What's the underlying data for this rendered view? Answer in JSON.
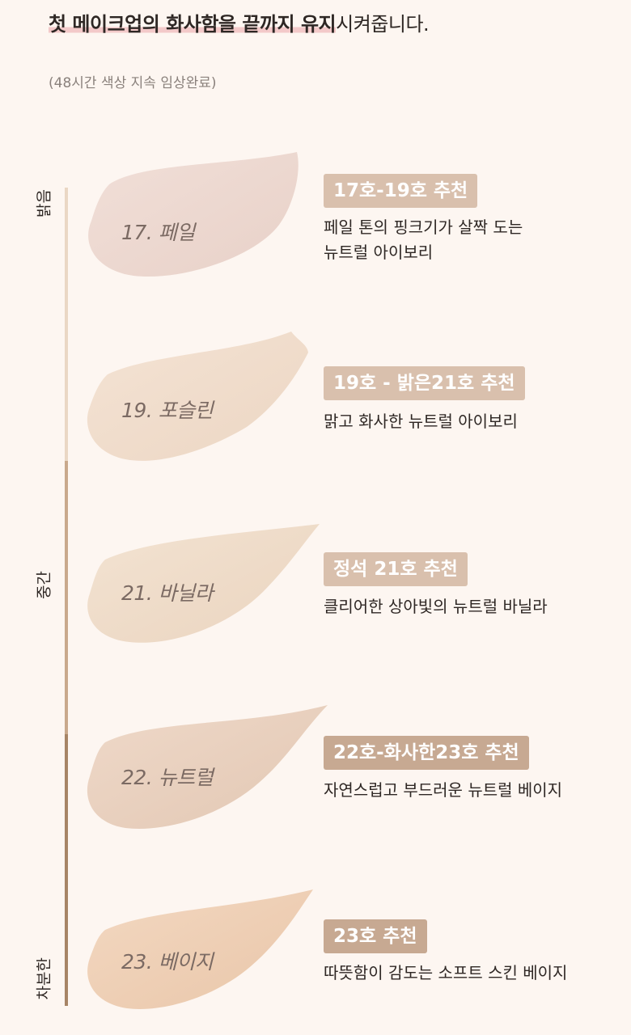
{
  "headline": {
    "highlight": "첫 메이크업의 화사함을 끝까지 유지",
    "rest": "시켜줍니다."
  },
  "note": "(48시간 색상 지속 임상완료)",
  "scale_labels": {
    "top": "밝음",
    "middle": "중간",
    "bottom": "차분한"
  },
  "colors": {
    "background": "#fdf6f1",
    "badge_light": "#d9c0ad",
    "badge_mid": "#c7a992",
    "scale_light": "#ead7c4",
    "scale_mid": "#c9a98c",
    "scale_dark": "#a78566"
  },
  "shades": [
    {
      "name": "17. 페일",
      "badge": "17호-19호 추천",
      "desc": [
        "페일 톤의 핑크기가 살짝 도는",
        "뉴트럴 아이보리"
      ]
    },
    {
      "name": "19. 포슬린",
      "badge": "19호 - 밝은21호 추천",
      "desc": [
        "맑고 화사한 뉴트럴 아이보리"
      ]
    },
    {
      "name": "21. 바닐라",
      "badge": "정석 21호 추천",
      "desc": [
        "클리어한 상아빛의 뉴트럴 바닐라"
      ]
    },
    {
      "name": "22. 뉴트럴",
      "badge": "22호-화사한23호 추천",
      "desc": [
        "자연스럽고 부드러운 뉴트럴 베이지"
      ]
    },
    {
      "name": "23. 베이지",
      "badge": "23호 추천",
      "desc": [
        "따뜻함이 감도는 소프트 스킨 베이지"
      ]
    }
  ]
}
